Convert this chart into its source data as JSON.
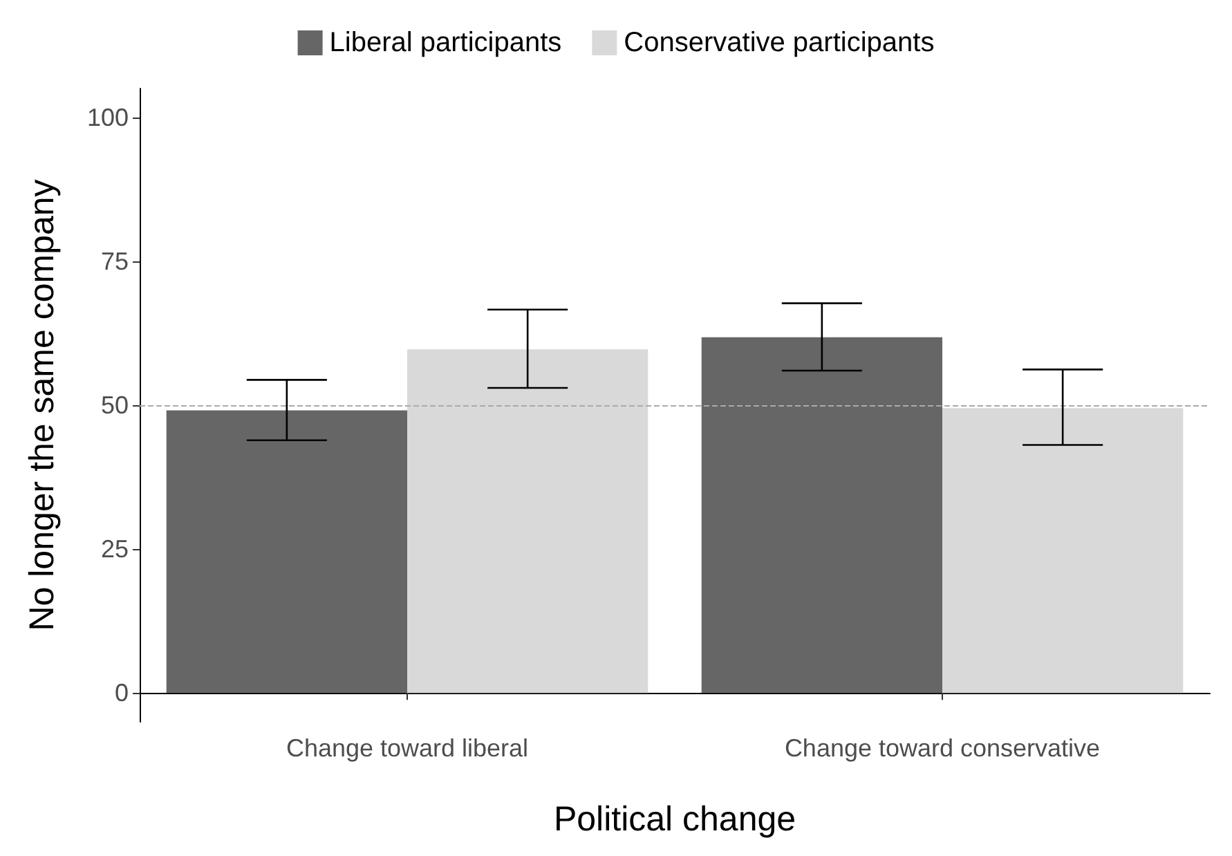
{
  "chart_data": {
    "type": "bar",
    "xlabel": "Political change",
    "ylabel": "No longer the same company",
    "categories": [
      "Change toward liberal",
      "Change toward conservative"
    ],
    "series": [
      {
        "name": "Liberal participants",
        "color": "#666666",
        "values": [
          49.1,
          61.8
        ],
        "errors": [
          [
            43.9,
            54.4
          ],
          [
            56.0,
            67.7
          ]
        ]
      },
      {
        "name": "Conservative participants",
        "color": "#d9d9d9",
        "values": [
          59.7,
          49.5
        ],
        "errors": [
          [
            53.0,
            66.6
          ],
          [
            43.1,
            56.2
          ]
        ]
      }
    ],
    "ylim": [
      -5,
      105
    ],
    "yticks": [
      0,
      25,
      50,
      75,
      100
    ],
    "grid": false,
    "legend": "top",
    "ref_lines": [
      {
        "axis": "y",
        "value": 50,
        "label": null,
        "color": "#aaaaaa",
        "line_style": "dashed"
      }
    ]
  }
}
